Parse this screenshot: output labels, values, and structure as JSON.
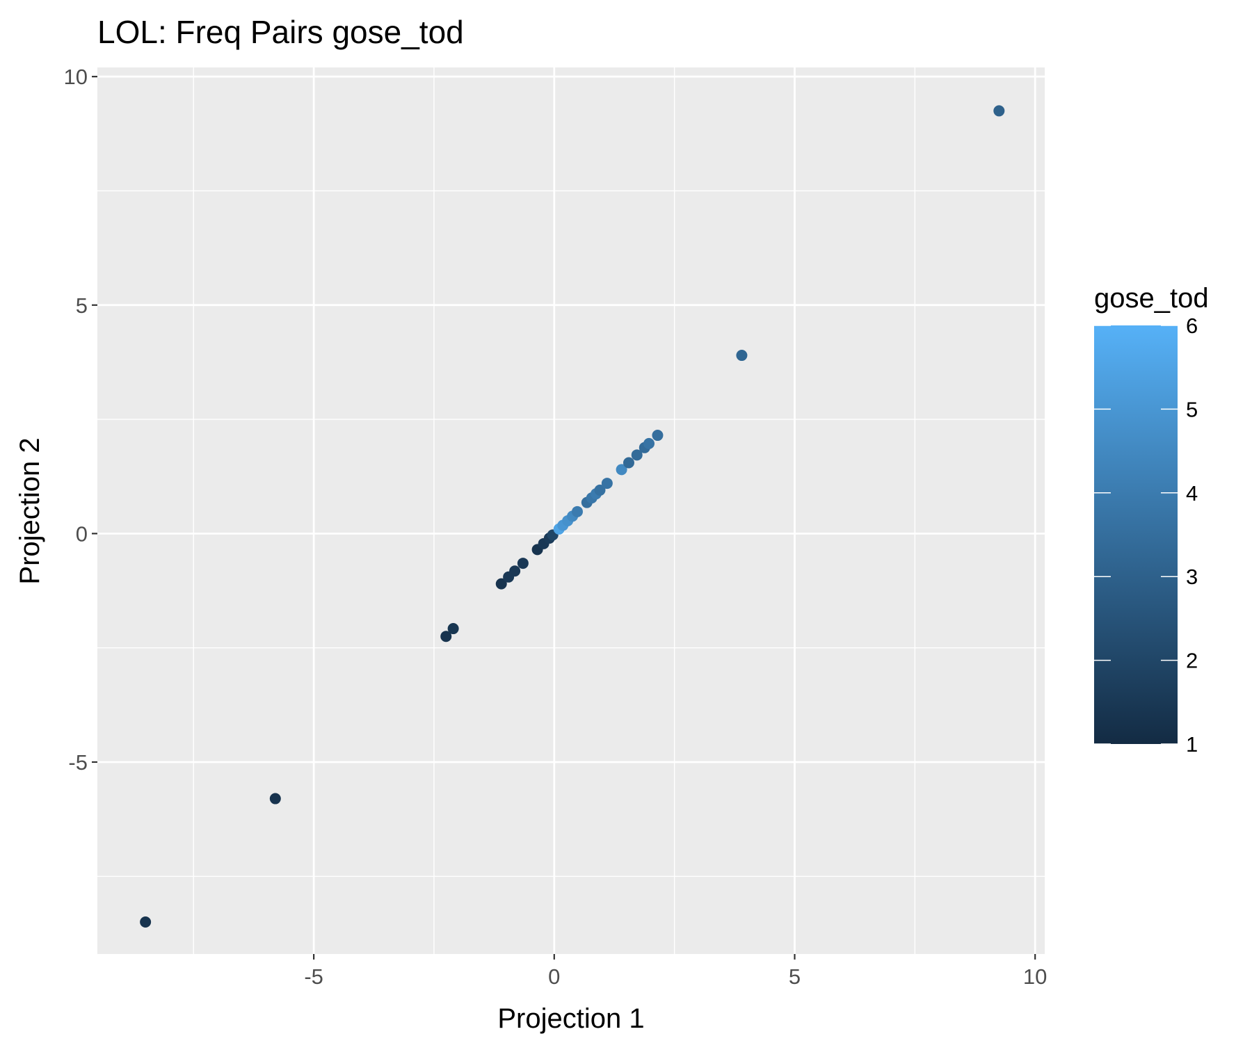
{
  "chart_data": {
    "type": "scatter",
    "title": "LOL: Freq Pairs gose_tod",
    "xlabel": "Projection 1",
    "ylabel": "Projection 2",
    "xlim": [
      -9.5,
      10.2
    ],
    "ylim": [
      -9.2,
      10.2
    ],
    "x_ticks": [
      -5,
      0,
      5,
      10
    ],
    "x_tick_labels": [
      "-5",
      "0",
      "5",
      "10"
    ],
    "y_ticks": [
      -5,
      0,
      5,
      10
    ],
    "y_tick_labels": [
      "-5",
      "0",
      "5",
      "10"
    ],
    "x_minor": [
      -7.5,
      -2.5,
      2.5,
      7.5
    ],
    "y_minor": [
      -7.5,
      -2.5,
      2.5,
      7.5
    ],
    "grid": true,
    "panel_background": "#ebebeb",
    "grid_color": "#ffffff",
    "legend": {
      "title": "gose_tod",
      "placement": "right",
      "min": 1,
      "max": 6,
      "ticks": [
        1,
        2,
        3,
        4,
        5,
        6
      ],
      "tick_labels": [
        "1",
        "2",
        "3",
        "4",
        "5",
        "6"
      ],
      "low_color": "#132b43",
      "high_color": "#56b1f7"
    },
    "points": [
      {
        "x": -8.5,
        "y": -8.5,
        "gose_tod": 1.3
      },
      {
        "x": -5.8,
        "y": -5.8,
        "gose_tod": 1.3
      },
      {
        "x": -2.25,
        "y": -2.25,
        "gose_tod": 1.3
      },
      {
        "x": -2.1,
        "y": -2.08,
        "gose_tod": 1.4
      },
      {
        "x": -1.1,
        "y": -1.1,
        "gose_tod": 1.3
      },
      {
        "x": -0.95,
        "y": -0.95,
        "gose_tod": 1.5
      },
      {
        "x": -0.82,
        "y": -0.82,
        "gose_tod": 1.5
      },
      {
        "x": -0.65,
        "y": -0.65,
        "gose_tod": 1.5
      },
      {
        "x": -0.35,
        "y": -0.35,
        "gose_tod": 1.3
      },
      {
        "x": -0.22,
        "y": -0.22,
        "gose_tod": 1.5
      },
      {
        "x": -0.1,
        "y": -0.1,
        "gose_tod": 1.6
      },
      {
        "x": -0.03,
        "y": -0.03,
        "gose_tod": 2.0
      },
      {
        "x": 0.1,
        "y": 0.1,
        "gose_tod": 5.5
      },
      {
        "x": 0.18,
        "y": 0.18,
        "gose_tod": 5.0
      },
      {
        "x": 0.28,
        "y": 0.28,
        "gose_tod": 4.8
      },
      {
        "x": 0.38,
        "y": 0.38,
        "gose_tod": 4.5
      },
      {
        "x": 0.48,
        "y": 0.48,
        "gose_tod": 4.0
      },
      {
        "x": 0.68,
        "y": 0.68,
        "gose_tod": 3.5
      },
      {
        "x": 0.78,
        "y": 0.78,
        "gose_tod": 3.8
      },
      {
        "x": 0.87,
        "y": 0.87,
        "gose_tod": 4.0
      },
      {
        "x": 0.95,
        "y": 0.95,
        "gose_tod": 3.6
      },
      {
        "x": 1.1,
        "y": 1.1,
        "gose_tod": 3.7
      },
      {
        "x": 1.4,
        "y": 1.4,
        "gose_tod": 4.5
      },
      {
        "x": 1.55,
        "y": 1.55,
        "gose_tod": 3.3
      },
      {
        "x": 1.72,
        "y": 1.72,
        "gose_tod": 3.4
      },
      {
        "x": 1.88,
        "y": 1.88,
        "gose_tod": 3.4
      },
      {
        "x": 1.97,
        "y": 1.97,
        "gose_tod": 3.7
      },
      {
        "x": 2.15,
        "y": 2.15,
        "gose_tod": 3.5
      },
      {
        "x": 3.9,
        "y": 3.9,
        "gose_tod": 3.2
      },
      {
        "x": 9.25,
        "y": 9.25,
        "gose_tod": 3.0
      }
    ]
  }
}
